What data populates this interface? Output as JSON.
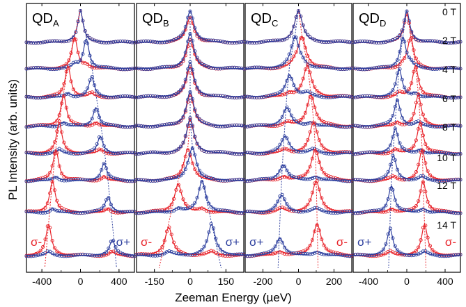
{
  "chart_data": {
    "type": "line",
    "ylabel": "PL Intensity (arb. units)",
    "xlabel": "Zeeman Energy (µeV)",
    "field_labels": [
      "0 T",
      "2 T",
      "4 T",
      "6 T",
      "8 T",
      "10 T",
      "12 T",
      "14 T"
    ],
    "fields_T": [
      0,
      2,
      4,
      6,
      8,
      10,
      12,
      14
    ],
    "colors": {
      "sigma_minus": "#e8232a",
      "sigma_plus": "#2d3f9e",
      "guide_red": "#e8232a",
      "guide_blue": "#2d3f9e"
    },
    "panels": [
      {
        "name": "QD",
        "sub": "A",
        "xlim": [
          -560,
          560
        ],
        "xticks": [
          -400,
          0,
          400
        ],
        "xticklabels": [
          "-400",
          "0",
          "400"
        ],
        "width_ueV": 70,
        "sigma_minus_peak_ueV": [
          0,
          -60,
          -130,
          -175,
          -220,
          -255,
          -290,
          -330
        ],
        "sigma_plus_peak_ueV": [
          0,
          60,
          115,
          160,
          205,
          245,
          285,
          330
        ],
        "sigma_minus_amp": [
          1,
          1,
          1,
          1,
          1,
          1,
          1,
          1
        ],
        "sigma_plus_amp": [
          1,
          0.95,
          0.65,
          0.6,
          0.55,
          0.55,
          0.5,
          0.5
        ],
        "sigma_label_left": "σ-",
        "sigma_label_right": "σ+"
      },
      {
        "name": "QD",
        "sub": "B",
        "xlim": [
          -225,
          225
        ],
        "xticks": [
          -150,
          0,
          150
        ],
        "xticklabels": [
          "-150",
          "0",
          "150"
        ],
        "width_ueV": 38,
        "sigma_minus_peak_ueV": [
          0,
          0,
          0,
          0,
          0,
          -10,
          -50,
          -90
        ],
        "sigma_plus_peak_ueV": [
          0,
          0,
          0,
          0,
          0,
          10,
          50,
          90
        ],
        "sigma_minus_amp": [
          0.8,
          0.8,
          0.85,
          0.9,
          0.95,
          0.95,
          0.9,
          0.9
        ],
        "sigma_plus_amp": [
          1,
          1,
          1,
          1,
          1,
          1,
          1,
          1
        ],
        "sigma_label_left": "σ-",
        "sigma_label_right": "σ+"
      },
      {
        "name": "QD",
        "sub": "C",
        "xlim": [
          -300,
          300
        ],
        "xticks": [
          -200,
          0,
          200
        ],
        "xticklabels": [
          "-200",
          "0",
          "200"
        ],
        "width_ueV": 55,
        "sigma_minus_peak_ueV": [
          0,
          20,
          50,
          70,
          85,
          95,
          100,
          105
        ],
        "sigma_plus_peak_ueV": [
          0,
          -20,
          -50,
          -65,
          -75,
          -85,
          -95,
          -105
        ],
        "sigma_minus_amp": [
          1,
          1,
          1,
          1,
          1,
          1,
          1,
          1
        ],
        "sigma_plus_amp": [
          1,
          1,
          0.7,
          0.6,
          0.55,
          0.5,
          0.55,
          0.55
        ],
        "sigma_label_left": "σ+",
        "sigma_label_right": "σ-"
      },
      {
        "name": "QD",
        "sub": "D",
        "xlim": [
          -560,
          560
        ],
        "xticks": [
          -400,
          0,
          400
        ],
        "xticklabels": [
          "-400",
          "0",
          "400"
        ],
        "width_ueV": 75,
        "sigma_minus_peak_ueV": [
          0,
          40,
          90,
          120,
          140,
          160,
          170,
          185
        ],
        "sigma_plus_peak_ueV": [
          0,
          -40,
          -80,
          -100,
          -120,
          -140,
          -160,
          -175
        ],
        "sigma_minus_amp": [
          0.9,
          1,
          1,
          1,
          1,
          1,
          1,
          1
        ],
        "sigma_plus_amp": [
          1,
          1,
          0.9,
          0.85,
          0.8,
          0.8,
          0.85,
          0.85
        ],
        "sigma_label_left": "σ+",
        "sigma_label_right": "σ-"
      }
    ]
  }
}
